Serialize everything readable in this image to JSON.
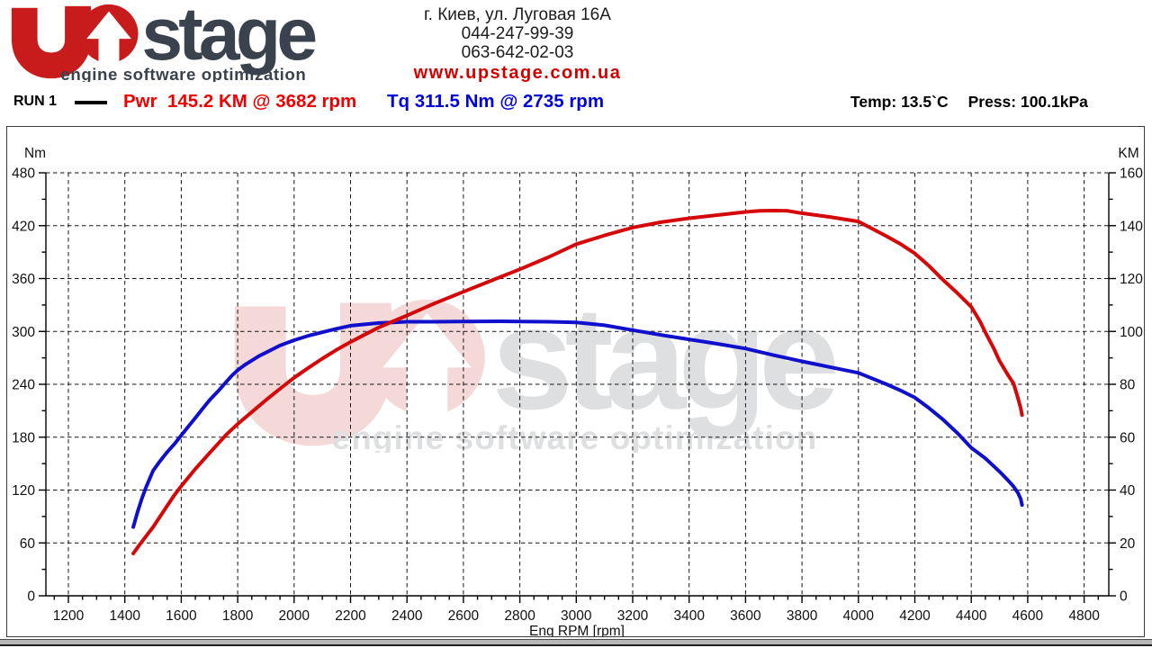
{
  "header": {
    "logo": {
      "brand_rest": "stage",
      "tagline": "engine software optimization"
    },
    "contact": {
      "address": "г. Киев, ул. Луговая 16А",
      "phone1": "044-247-99-39",
      "phone2": "063-642-02-03",
      "website": "www.upstage.com.ua"
    },
    "conditions": {
      "temp": "Temp: 13.5`C",
      "press": "Press: 100.1kPa"
    }
  },
  "legend": {
    "run_label": "RUN 1",
    "power_label": "Pwr  145.2 KM @ 3682 rpm",
    "torque_label": "Tq 311.5 Nm @ 2735 rpm"
  },
  "chart_data": {
    "type": "line",
    "xlabel": "Eng RPM [rpm]",
    "grid": "dashed",
    "x_axis": {
      "tick_min": 1200,
      "tick_max": 4800,
      "tick_step": 200,
      "minor_step": 50
    },
    "y_left": {
      "label": "Nm",
      "min": 0,
      "max": 480,
      "tick_step": 60,
      "minor_step": 30
    },
    "y_right": {
      "label": "KM",
      "min": 0,
      "max": 160,
      "tick_step": 20,
      "minor_step": 10
    },
    "series": [
      {
        "name": "torque",
        "axis": "left",
        "color": "#1010cc",
        "peak_value": 311.5,
        "peak_unit": "Nm",
        "peak_rpm": 2735,
        "points": [
          [
            1430,
            78
          ],
          [
            1445,
            95
          ],
          [
            1460,
            110
          ],
          [
            1475,
            123
          ],
          [
            1500,
            142
          ],
          [
            1525,
            153
          ],
          [
            1550,
            163
          ],
          [
            1575,
            172
          ],
          [
            1600,
            182
          ],
          [
            1625,
            192
          ],
          [
            1650,
            202
          ],
          [
            1675,
            212
          ],
          [
            1700,
            222
          ],
          [
            1730,
            232
          ],
          [
            1760,
            243
          ],
          [
            1780,
            250
          ],
          [
            1800,
            256
          ],
          [
            1825,
            262
          ],
          [
            1850,
            267
          ],
          [
            1875,
            272
          ],
          [
            1900,
            276
          ],
          [
            1950,
            284
          ],
          [
            2000,
            290
          ],
          [
            2050,
            295
          ],
          [
            2100,
            299
          ],
          [
            2150,
            303
          ],
          [
            2200,
            306.5
          ],
          [
            2250,
            308
          ],
          [
            2300,
            309.5
          ],
          [
            2350,
            310.3
          ],
          [
            2400,
            311
          ],
          [
            2500,
            311
          ],
          [
            2600,
            311.3
          ],
          [
            2735,
            311.5
          ],
          [
            2800,
            311.3
          ],
          [
            2900,
            311
          ],
          [
            3000,
            310.3
          ],
          [
            3100,
            307
          ],
          [
            3200,
            301.5
          ],
          [
            3300,
            296
          ],
          [
            3400,
            291
          ],
          [
            3500,
            286
          ],
          [
            3600,
            280.5
          ],
          [
            3700,
            273
          ],
          [
            3800,
            266
          ],
          [
            3900,
            259.5
          ],
          [
            4000,
            253
          ],
          [
            4100,
            240
          ],
          [
            4150,
            233
          ],
          [
            4200,
            225
          ],
          [
            4250,
            213
          ],
          [
            4300,
            200
          ],
          [
            4350,
            185
          ],
          [
            4400,
            168
          ],
          [
            4450,
            156
          ],
          [
            4500,
            141
          ],
          [
            4530,
            131
          ],
          [
            4550,
            124
          ],
          [
            4565,
            117
          ],
          [
            4575,
            110
          ],
          [
            4580,
            103
          ]
        ]
      },
      {
        "name": "power",
        "axis": "right",
        "color": "#d40808",
        "peak_value": 145.2,
        "peak_unit": "KM",
        "peak_rpm": 3682,
        "points": [
          [
            1430,
            16
          ],
          [
            1450,
            19
          ],
          [
            1475,
            22.5
          ],
          [
            1500,
            26
          ],
          [
            1525,
            30
          ],
          [
            1550,
            34
          ],
          [
            1575,
            38
          ],
          [
            1600,
            41.5
          ],
          [
            1650,
            48
          ],
          [
            1700,
            54
          ],
          [
            1760,
            61
          ],
          [
            1800,
            65
          ],
          [
            1850,
            69.5
          ],
          [
            1900,
            74
          ],
          [
            1950,
            78.3
          ],
          [
            2000,
            82.5
          ],
          [
            2050,
            86.2
          ],
          [
            2100,
            89.7
          ],
          [
            2150,
            93
          ],
          [
            2200,
            96
          ],
          [
            2250,
            98.8
          ],
          [
            2300,
            101.5
          ],
          [
            2350,
            103.8
          ],
          [
            2400,
            106
          ],
          [
            2500,
            110.7
          ],
          [
            2600,
            115
          ],
          [
            2700,
            119.3
          ],
          [
            2800,
            123.5
          ],
          [
            2900,
            128
          ],
          [
            3000,
            133
          ],
          [
            3100,
            136.3
          ],
          [
            3200,
            139.3
          ],
          [
            3300,
            141.3
          ],
          [
            3400,
            142.8
          ],
          [
            3500,
            144
          ],
          [
            3600,
            145.2
          ],
          [
            3650,
            145.6
          ],
          [
            3700,
            145.7
          ],
          [
            3750,
            145.6
          ],
          [
            3800,
            144.7
          ],
          [
            3900,
            143.3
          ],
          [
            4000,
            141.6
          ],
          [
            4100,
            136
          ],
          [
            4150,
            133
          ],
          [
            4200,
            129.5
          ],
          [
            4250,
            124.8
          ],
          [
            4300,
            119.5
          ],
          [
            4350,
            114.6
          ],
          [
            4400,
            109.3
          ],
          [
            4430,
            104
          ],
          [
            4450,
            99.6
          ],
          [
            4480,
            93.5
          ],
          [
            4500,
            88.9
          ],
          [
            4530,
            83.5
          ],
          [
            4550,
            80.3
          ],
          [
            4565,
            75
          ],
          [
            4575,
            71
          ],
          [
            4580,
            68.4
          ]
        ]
      }
    ]
  }
}
